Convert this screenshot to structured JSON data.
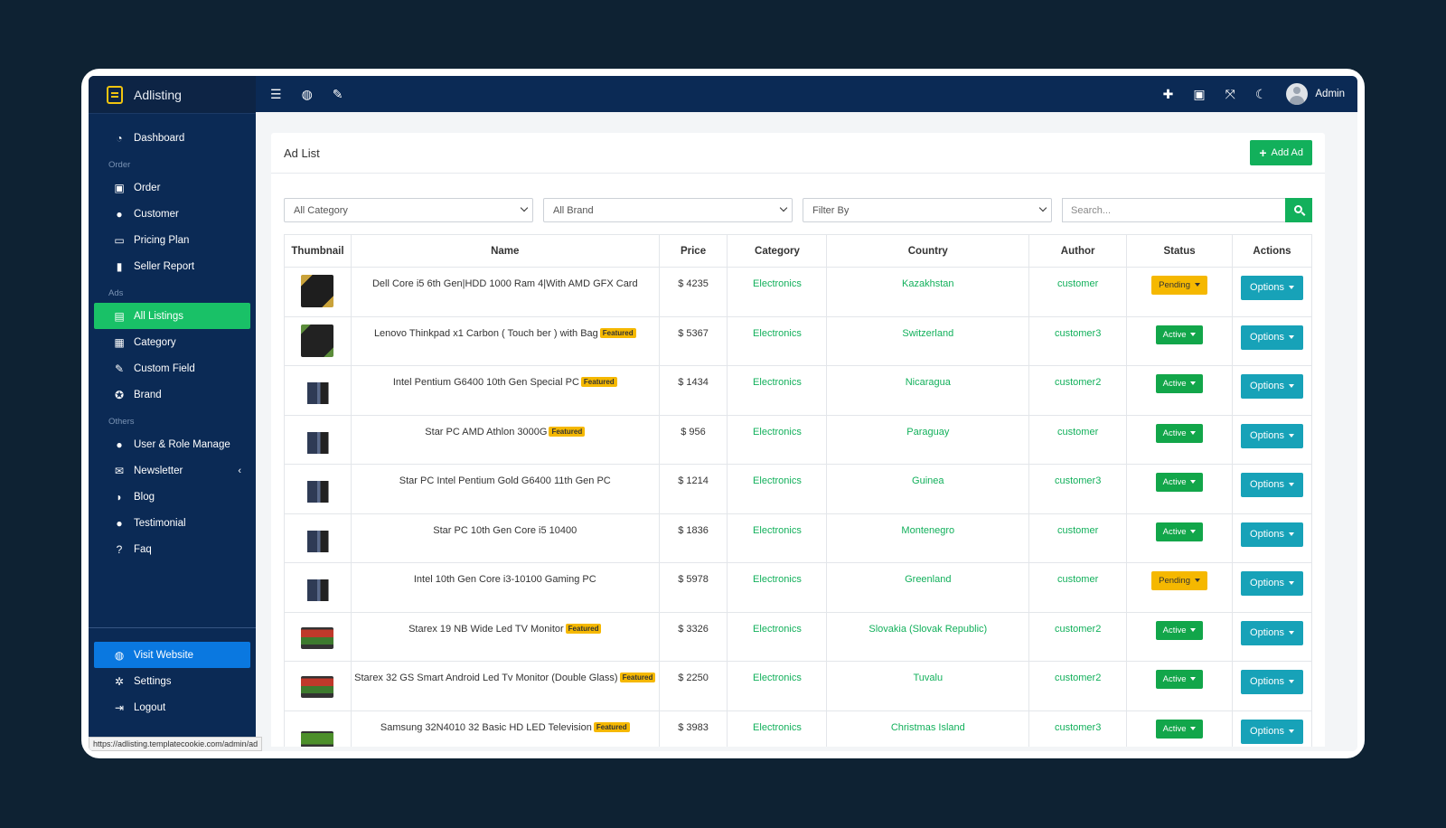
{
  "app": {
    "name": "Adlisting",
    "user": "Admin"
  },
  "sidebar": {
    "items": [
      {
        "label": "Dashboard",
        "icon": "dashboard-icon"
      }
    ],
    "order_heading": "Order",
    "order_items": [
      {
        "label": "Order",
        "icon": "money-icon"
      },
      {
        "label": "Customer",
        "icon": "users-icon"
      },
      {
        "label": "Pricing Plan",
        "icon": "card-icon"
      },
      {
        "label": "Seller Report",
        "icon": "file-icon"
      }
    ],
    "ads_heading": "Ads",
    "ads_items": [
      {
        "label": "All Listings",
        "icon": "store-icon",
        "active": true
      },
      {
        "label": "Category",
        "icon": "grid-icon"
      },
      {
        "label": "Custom Field",
        "icon": "edit-icon"
      },
      {
        "label": "Brand",
        "icon": "award-icon"
      }
    ],
    "others_heading": "Others",
    "others_items": [
      {
        "label": "User & Role Manage",
        "icon": "users-icon"
      },
      {
        "label": "Newsletter",
        "icon": "envelope-icon"
      },
      {
        "label": "Blog",
        "icon": "blog-icon"
      },
      {
        "label": "Testimonial",
        "icon": "comment-icon"
      },
      {
        "label": "Faq",
        "icon": "question-icon"
      }
    ],
    "bottom_items": [
      {
        "label": "Visit Website",
        "icon": "globe-icon"
      },
      {
        "label": "Settings",
        "icon": "gear-icon"
      },
      {
        "label": "Logout",
        "icon": "logout-icon"
      }
    ],
    "status_url": "https://adlisting.templatecookie.com/admin/ad"
  },
  "card": {
    "title": "Ad List",
    "add_button": "Add Ad"
  },
  "filters": {
    "category": "All Category",
    "brand": "All Brand",
    "filter_by": "Filter By",
    "search_placeholder": "Search..."
  },
  "table": {
    "headers": [
      "Thumbnail",
      "Name",
      "Price",
      "Category",
      "Country",
      "Author",
      "Status",
      "Actions"
    ],
    "featured_label": "Featured",
    "options_label": "Options",
    "rows": [
      {
        "name": "Dell Core i5 6th Gen|HDD 1000 Ram 4|With AMD GFX Card",
        "featured": false,
        "price": "$ 4235",
        "category": "Electronics",
        "country": "Kazakhstan",
        "author": "customer",
        "status": "Pending",
        "thumb": "laptop-gold"
      },
      {
        "name": "Lenovo Thinkpad x1 Carbon ( Touch ber ) with Bag",
        "featured": true,
        "price": "$ 5367",
        "category": "Electronics",
        "country": "Switzerland",
        "author": "customer3",
        "status": "Active",
        "thumb": "laptop-green"
      },
      {
        "name": "Intel Pentium G6400 10th Gen Special PC",
        "featured": true,
        "price": "$ 1434",
        "category": "Electronics",
        "country": "Nicaragua",
        "author": "customer2",
        "status": "Active",
        "thumb": "pc"
      },
      {
        "name": "Star PC AMD Athlon 3000G",
        "featured": true,
        "price": "$ 956",
        "category": "Electronics",
        "country": "Paraguay",
        "author": "customer",
        "status": "Active",
        "thumb": "pc"
      },
      {
        "name": "Star PC Intel Pentium Gold G6400 11th Gen PC",
        "featured": false,
        "price": "$ 1214",
        "category": "Electronics",
        "country": "Guinea",
        "author": "customer3",
        "status": "Active",
        "thumb": "pc"
      },
      {
        "name": "Star PC 10th Gen Core i5 10400",
        "featured": false,
        "price": "$ 1836",
        "category": "Electronics",
        "country": "Montenegro",
        "author": "customer",
        "status": "Active",
        "thumb": "pc"
      },
      {
        "name": "Intel 10th Gen Core i3-10100 Gaming PC",
        "featured": false,
        "price": "$ 5978",
        "category": "Electronics",
        "country": "Greenland",
        "author": "customer",
        "status": "Pending",
        "thumb": "pc"
      },
      {
        "name": "Starex 19 NB Wide Led TV Monitor",
        "featured": true,
        "price": "$ 3326",
        "category": "Electronics",
        "country": "Slovakia (Slovak Republic)",
        "author": "customer2",
        "status": "Active",
        "thumb": "tv"
      },
      {
        "name": "Starex 32 GS Smart Android Led Tv Monitor (Double Glass)",
        "featured": true,
        "price": "$ 2250",
        "category": "Electronics",
        "country": "Tuvalu",
        "author": "customer2",
        "status": "Active",
        "thumb": "tv"
      },
      {
        "name": "Samsung 32N4010 32 Basic HD LED Television",
        "featured": true,
        "price": "$ 3983",
        "category": "Electronics",
        "country": "Christmas Island",
        "author": "customer3",
        "status": "Active",
        "thumb": "tv-green"
      }
    ]
  },
  "colors": {
    "sidebar": "#0b2a55",
    "accent": "#12b05b",
    "options": "#17a2b8",
    "pending": "#f5b800",
    "active": "#12a64a"
  }
}
